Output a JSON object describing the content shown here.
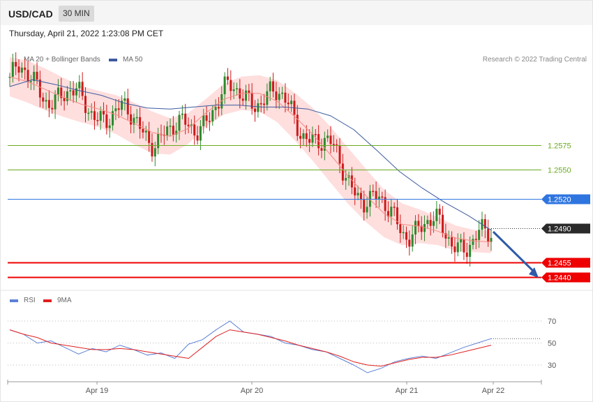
{
  "header": {
    "symbol": "USD/CAD",
    "timeframe": "30 MIN",
    "timestamp": "Thursday, April 21, 2022 1:23:08 PM CET",
    "copyright": "Research © 2022 Trading Central"
  },
  "legend": {
    "ma20": "MA 20 + Bollinger Bands",
    "ma50": "MA 50",
    "rsi": "RSI",
    "ma9": "9MA"
  },
  "colors": {
    "ma20": "#f48a80",
    "bands": "#ffdede",
    "ma50": "#3d5a9e",
    "resistance": "#6aaa1f",
    "pivot": "#2f75e0",
    "support": "#ee0000",
    "candle_up": "#2b8a2b",
    "candle_down": "#cc1a1a",
    "rsi": "#5b80d6",
    "ma9": "#e02020",
    "current": "#2a2a2a",
    "arrow": "#2f5aa8"
  },
  "chart_data": [
    {
      "type": "candlestick",
      "title": "USD/CAD",
      "timeframe": "30 MIN",
      "x_ticks": [
        "Apr 19",
        "Apr 20",
        "Apr 21",
        "Apr 22"
      ],
      "ylim": [
        1.243,
        1.267
      ],
      "levels": [
        {
          "value": 1.2575,
          "label": "1.2575",
          "kind": "resistance"
        },
        {
          "value": 1.255,
          "label": "1.2550",
          "kind": "resistance"
        },
        {
          "value": 1.252,
          "label": "1.2520",
          "kind": "pivot"
        },
        {
          "value": 1.249,
          "label": "1.2490",
          "kind": "current"
        },
        {
          "value": 1.2455,
          "label": "1.2455",
          "kind": "support"
        },
        {
          "value": 1.244,
          "label": "1.2440",
          "kind": "support"
        }
      ],
      "series": [
        {
          "name": "MA 20 + Bollinger Bands",
          "values": [
            1.2645,
            1.264,
            1.2632,
            1.2624,
            1.2617,
            1.2612,
            1.2606,
            1.2597,
            1.2588,
            1.2584,
            1.2592,
            1.2608,
            1.2622,
            1.2628,
            1.2628,
            1.262,
            1.2604,
            1.2586,
            1.2565,
            1.2543,
            1.2523,
            1.2505,
            1.2494,
            1.2492,
            1.2487,
            1.248,
            1.2477,
            1.2476
          ]
        },
        {
          "name": "MA 50",
          "values": [
            1.2635,
            1.2642,
            1.2637,
            1.2631,
            1.2626,
            1.2618,
            1.2613,
            1.2612,
            1.2614,
            1.2616,
            1.2616,
            1.2614,
            1.2614,
            1.2612,
            1.2605,
            1.2591,
            1.257,
            1.2548,
            1.2531,
            1.2516,
            1.2503,
            1.2488
          ]
        }
      ],
      "forecast_target": 1.244
    },
    {
      "type": "line",
      "x_ticks": [
        "Apr 19",
        "Apr 20",
        "Apr 21",
        "Apr 22"
      ],
      "ylim": [
        22,
        78
      ],
      "y_ticks": [
        70,
        50,
        30
      ],
      "series": [
        {
          "name": "RSI",
          "values": [
            62,
            58,
            50,
            52,
            46,
            40,
            45,
            42,
            48,
            44,
            39,
            41,
            36,
            49,
            53,
            62,
            70,
            60,
            58,
            56,
            50,
            48,
            44,
            42,
            36,
            30,
            23,
            27,
            33,
            36,
            38,
            36,
            41,
            46,
            50,
            54
          ]
        },
        {
          "name": "9MA",
          "values": [
            62,
            58,
            55,
            50,
            48,
            46,
            44,
            44,
            45,
            44,
            42,
            40,
            38,
            36,
            46,
            56,
            62,
            60,
            58,
            55,
            52,
            48,
            45,
            42,
            38,
            33,
            30,
            29,
            32,
            35,
            37,
            37,
            39,
            42,
            45,
            48
          ]
        }
      ]
    }
  ]
}
